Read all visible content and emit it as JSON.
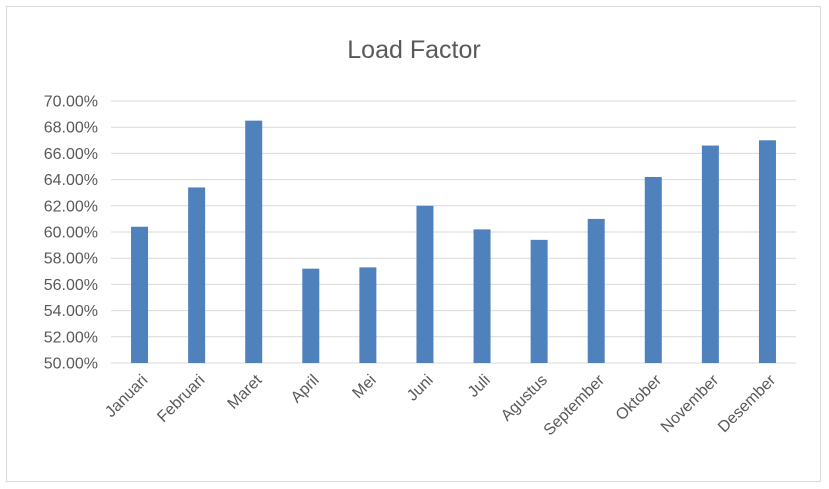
{
  "chart_data": {
    "type": "bar",
    "title": "Load Factor",
    "xlabel": "",
    "ylabel": "",
    "ylim": [
      50,
      70
    ],
    "ytick_step": 2,
    "ytick_labels": [
      "50.00%",
      "52.00%",
      "54.00%",
      "56.00%",
      "58.00%",
      "60.00%",
      "62.00%",
      "64.00%",
      "66.00%",
      "68.00%",
      "70.00%"
    ],
    "grid": true,
    "legend": "none",
    "bar_color": "#4f81bd",
    "categories": [
      "Januari",
      "Februari",
      "Maret",
      "April",
      "Mei",
      "Juni",
      "Juli",
      "Agustus",
      "September",
      "Oktober",
      "November",
      "Desember"
    ],
    "values": [
      60.4,
      63.4,
      68.5,
      57.2,
      57.3,
      62.0,
      60.2,
      59.4,
      61.0,
      64.2,
      66.6,
      67.0
    ]
  }
}
